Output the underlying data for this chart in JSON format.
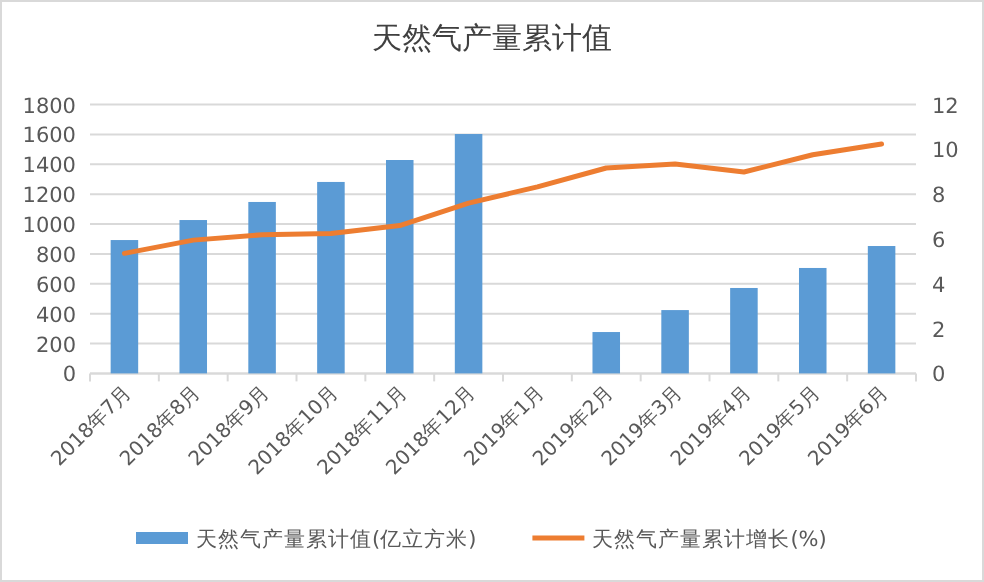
{
  "chart_data": {
    "type": "bar",
    "title": "天然气产量累计值",
    "categories": [
      "2018年7月",
      "2018年8月",
      "2018年9月",
      "2018年10月",
      "2018年11月",
      "2018年12月",
      "2019年1月",
      "2019年2月",
      "2019年3月",
      "2019年4月",
      "2019年5月",
      "2019年6月"
    ],
    "series": [
      {
        "name": "天然气产量累计值(亿立方米)",
        "color": "#5b9bd5",
        "values": [
          893,
          1027,
          1148,
          1282,
          1429,
          1603,
          null,
          277,
          424,
          572,
          706,
          853
        ]
      },
      {
        "name": "天然气产量累计增长(%)",
        "color": "#ed7d31",
        "type": "line",
        "axis": "y2",
        "values": [
          5.36,
          5.95,
          6.19,
          6.25,
          6.6,
          7.6,
          8.33,
          9.17,
          9.35,
          8.99,
          9.76,
          10.24
        ]
      }
    ],
    "ylim": [
      0,
      1800
    ],
    "yticks": [
      0,
      200,
      400,
      600,
      800,
      1000,
      1200,
      1400,
      1600,
      1800
    ],
    "y2lim": [
      0,
      12
    ],
    "y2ticks": [
      0,
      2,
      4,
      6,
      8,
      10,
      12
    ],
    "grid": "y",
    "legend": "bottom",
    "marker": "none"
  }
}
